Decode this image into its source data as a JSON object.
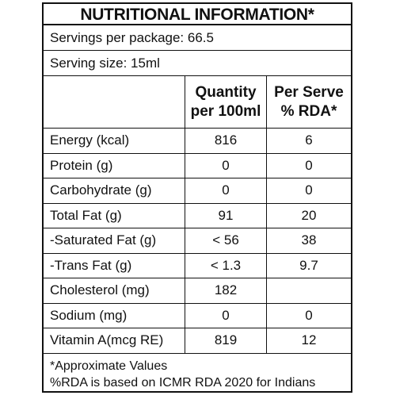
{
  "title": "NUTRITIONAL INFORMATION*",
  "servings_per_package": "Servings per package: 66.5",
  "serving_size": "Serving size: 15ml",
  "headers": {
    "quantity_line1": "Quantity",
    "quantity_line2": "per 100ml",
    "rda_line1": "Per Serve",
    "rda_line2": "% RDA*"
  },
  "rows": [
    {
      "name": "Energy (kcal)",
      "quantity": "816",
      "rda": "6"
    },
    {
      "name": "Protein (g)",
      "quantity": "0",
      "rda": "0"
    },
    {
      "name": "Carbohydrate (g)",
      "quantity": "0",
      "rda": "0"
    },
    {
      "name": "Total Fat (g)",
      "quantity": "91",
      "rda": "20"
    },
    {
      "name": "-Saturated Fat (g)",
      "quantity": "< 56",
      "rda": "38"
    },
    {
      "name": "-Trans Fat (g)",
      "quantity": "< 1.3",
      "rda": "9.7"
    },
    {
      "name": "Cholesterol (mg)",
      "quantity": "182",
      "rda": ""
    },
    {
      "name": "Sodium (mg)",
      "quantity": "0",
      "rda": "0"
    },
    {
      "name": "Vitamin A(mcg RE)",
      "quantity": "819",
      "rda": "12"
    }
  ],
  "footnotes": [
    "*Approximate Values",
    "%RDA is based on ICMR RDA 2020 for Indians"
  ]
}
